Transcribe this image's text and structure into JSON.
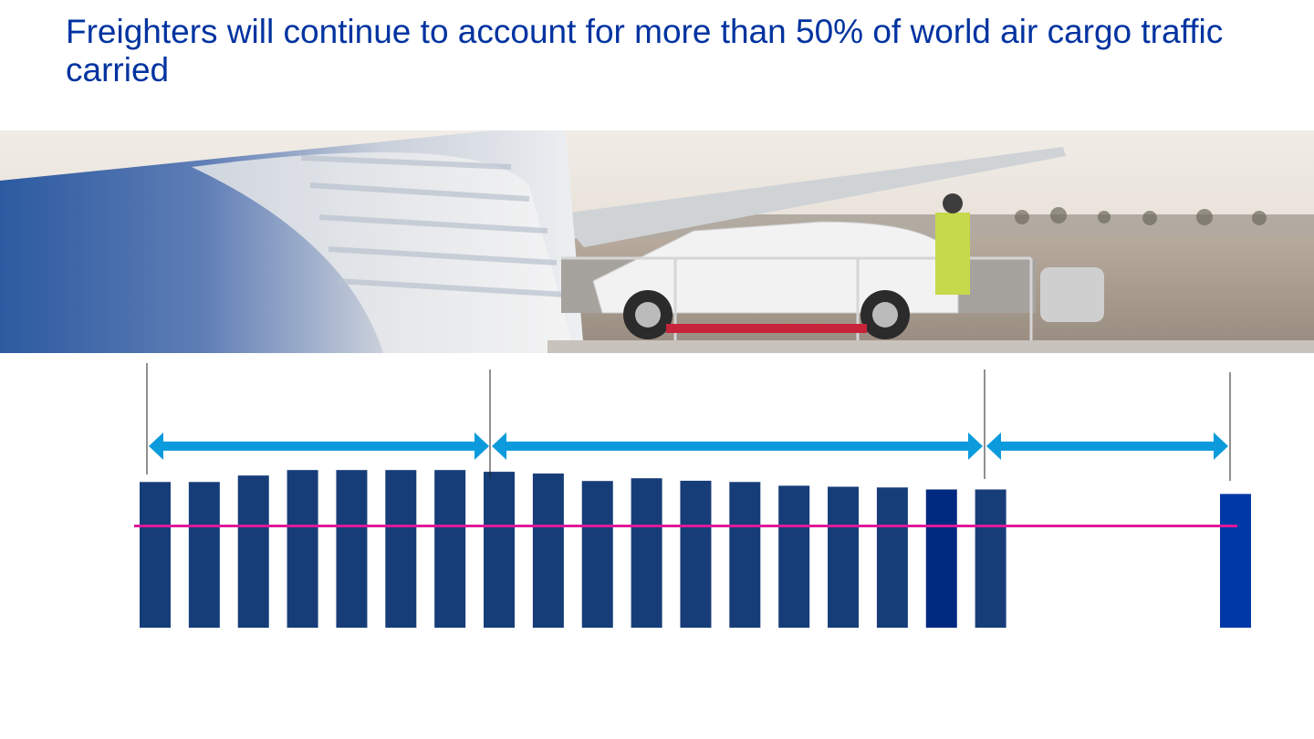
{
  "slide": {
    "title": "Freighters will continue to account for more than 50% of world air cargo traffic carried"
  },
  "banner": {
    "description_icon": "freighter-loading-photo-icon"
  },
  "colors": {
    "title": "#0033a0",
    "bar": "#173d79",
    "bar_highlight": "#002a7f",
    "bar_forecast": "#0039a6",
    "reference_line": "#e0189a",
    "arrow": "#0b9bdc",
    "divider": "#222222"
  },
  "chart_data": {
    "type": "bar",
    "title": "",
    "xlabel": "",
    "ylabel": "",
    "ylim": [
      0,
      100
    ],
    "bars": [
      {
        "value": 58.5,
        "variant": "normal"
      },
      {
        "value": 58.5,
        "variant": "normal"
      },
      {
        "value": 61.1,
        "variant": "normal"
      },
      {
        "value": 63.3,
        "variant": "normal"
      },
      {
        "value": 63.3,
        "variant": "normal"
      },
      {
        "value": 63.3,
        "variant": "normal"
      },
      {
        "value": 63.3,
        "variant": "normal"
      },
      {
        "value": 62.6,
        "variant": "normal"
      },
      {
        "value": 61.9,
        "variant": "normal"
      },
      {
        "value": 58.9,
        "variant": "normal"
      },
      {
        "value": 60.0,
        "variant": "normal"
      },
      {
        "value": 59.0,
        "variant": "normal"
      },
      {
        "value": 58.5,
        "variant": "normal"
      },
      {
        "value": 57.0,
        "variant": "normal"
      },
      {
        "value": 56.6,
        "variant": "normal"
      },
      {
        "value": 56.3,
        "variant": "normal"
      },
      {
        "value": 55.5,
        "variant": "highlight"
      },
      {
        "value": 55.5,
        "variant": "normal"
      },
      {
        "value": 53.7,
        "variant": "forecast"
      }
    ],
    "reference_line": {
      "value": 50
    },
    "periods": [
      {
        "start_bar": 0,
        "end_bar": 7
      },
      {
        "start_bar": 7,
        "end_bar": 17
      },
      {
        "start_bar": 17,
        "end_bar": 18
      }
    ]
  }
}
